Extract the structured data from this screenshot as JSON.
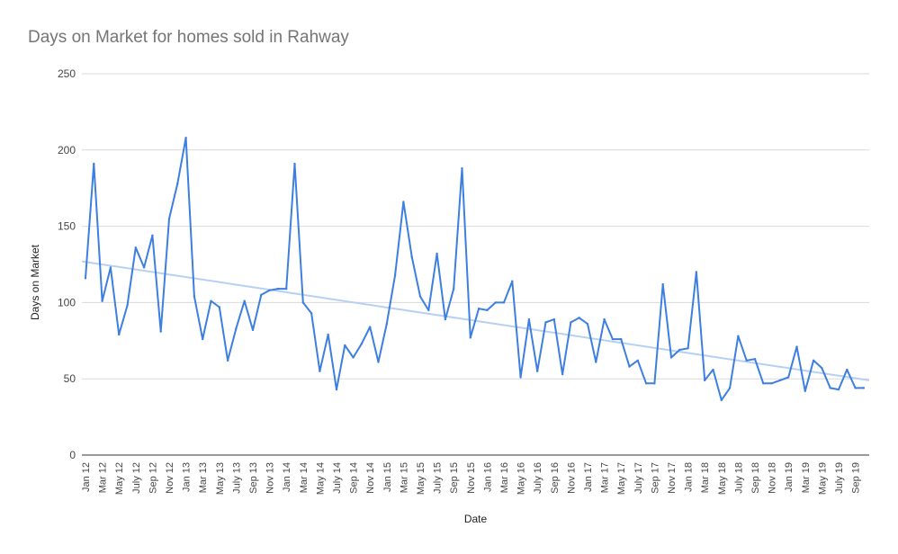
{
  "chart_data": {
    "type": "line",
    "title": "Days on Market for homes sold in Rahway",
    "xlabel": "Date",
    "ylabel": "Days on Market",
    "ylim": [
      0,
      250
    ],
    "yticks": [
      0,
      50,
      100,
      150,
      200,
      250
    ],
    "grid": true,
    "legend": "none",
    "x_tick_labels": [
      "Jan 12",
      "Mar 12",
      "May 12",
      "July 12",
      "Sep 12",
      "Nov 12",
      "Jan 13",
      "Mar 13",
      "May 13",
      "July 13",
      "Sep 13",
      "Nov 13",
      "Jan 14",
      "Mar 14",
      "May 14",
      "July 14",
      "Sep 14",
      "Nov 14",
      "Jan 15",
      "Mar 15",
      "May 15",
      "July 15",
      "Sep 15",
      "Nov 15",
      "Jan 16",
      "Mar 16",
      "May 16",
      "July 16",
      "Sep 16",
      "Nov 16",
      "Jan 17",
      "Mar 17",
      "May 17",
      "July 17",
      "Sep 17",
      "Nov 17",
      "Jan 18",
      "Mar 18",
      "May 18",
      "July 18",
      "Sep 18",
      "Nov 18",
      "Jan 19",
      "Mar 19",
      "May 19",
      "July 19",
      "Sep 19"
    ],
    "x": [
      "Jan 12",
      "Feb 12",
      "Mar 12",
      "Apr 12",
      "May 12",
      "Jun 12",
      "Jul 12",
      "Aug 12",
      "Sep 12",
      "Oct 12",
      "Nov 12",
      "Dec 12",
      "Jan 13",
      "Feb 13",
      "Mar 13",
      "Apr 13",
      "May 13",
      "Jun 13",
      "Jul 13",
      "Aug 13",
      "Sep 13",
      "Oct 13",
      "Nov 13",
      "Dec 13",
      "Jan 14",
      "Feb 14",
      "Mar 14",
      "Apr 14",
      "May 14",
      "Jun 14",
      "Jul 14",
      "Aug 14",
      "Sep 14",
      "Oct 14",
      "Nov 14",
      "Dec 14",
      "Jan 15",
      "Feb 15",
      "Mar 15",
      "Apr 15",
      "May 15",
      "Jun 15",
      "Jul 15",
      "Aug 15",
      "Sep 15",
      "Oct 15",
      "Nov 15",
      "Dec 15",
      "Jan 16",
      "Feb 16",
      "Mar 16",
      "Apr 16",
      "May 16",
      "Jun 16",
      "Jul 16",
      "Aug 16",
      "Sep 16",
      "Oct 16",
      "Nov 16",
      "Dec 16",
      "Jan 17",
      "Feb 17",
      "Mar 17",
      "Apr 17",
      "May 17",
      "Jun 17",
      "Jul 17",
      "Aug 17",
      "Sep 17",
      "Oct 17",
      "Nov 17",
      "Dec 17",
      "Jan 18",
      "Feb 18",
      "Mar 18",
      "Apr 18",
      "May 18",
      "Jun 18",
      "Jul 18",
      "Aug 18",
      "Sep 18",
      "Oct 18",
      "Nov 18",
      "Dec 18",
      "Jan 19",
      "Feb 19",
      "Mar 19",
      "Apr 19",
      "May 19",
      "Jun 19",
      "Jul 19",
      "Aug 19",
      "Sep 19",
      "Oct 19"
    ],
    "series": [
      {
        "color": "#3d7fe0",
        "values": [
          116,
          191,
          101,
          123,
          79,
          98,
          136,
          123,
          144,
          81,
          155,
          178,
          208,
          104,
          76,
          101,
          97,
          62,
          83,
          101,
          82,
          105,
          108,
          109,
          109,
          191,
          100,
          93,
          55,
          79,
          43,
          72,
          64,
          73,
          84,
          61,
          86,
          118,
          166,
          130,
          104,
          95,
          132,
          89,
          109,
          188,
          77,
          96,
          95,
          100,
          100,
          114,
          51,
          89,
          55,
          87,
          89,
          53,
          87,
          90,
          86,
          61,
          89,
          76,
          76,
          58,
          62,
          47,
          47,
          112,
          64,
          69,
          70,
          120,
          49,
          56,
          36,
          44,
          78,
          62,
          63,
          47,
          47,
          49,
          51,
          71,
          42,
          62,
          57,
          44,
          43,
          56,
          44,
          44
        ]
      }
    ],
    "trendline": {
      "color": "#b6d0f5",
      "start": 127,
      "end": 49
    }
  }
}
